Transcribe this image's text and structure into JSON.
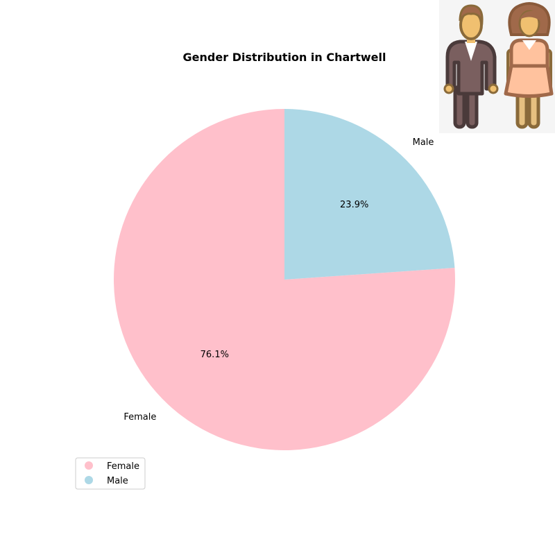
{
  "chart_data": {
    "type": "pie",
    "title": "Gender Distribution in Chartwell",
    "categories": [
      "Female",
      "Male"
    ],
    "values": [
      76.1,
      23.9
    ],
    "percent_labels": [
      "76.1%",
      "23.9%"
    ],
    "colors": [
      "#ffc0cb",
      "#add8e6"
    ],
    "start_angle_deg": 90,
    "direction": "counterclockwise",
    "legend": {
      "placement": "lower-left",
      "entries": [
        "Female",
        "Male"
      ]
    }
  },
  "decoration": {
    "icon": "male-female-people-icon"
  }
}
